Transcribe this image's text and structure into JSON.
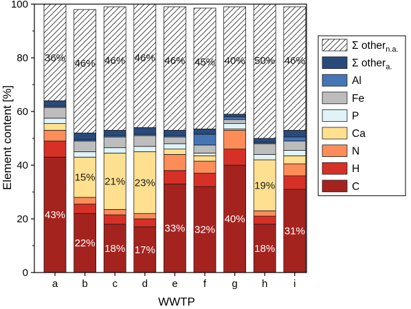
{
  "chart_data": {
    "type": "bar",
    "stacked": true,
    "xlabel": "WWTP",
    "ylabel": "Element content [%]",
    "ylim": [
      0,
      100
    ],
    "yticks": [
      0,
      20,
      40,
      60,
      80,
      100
    ],
    "categories": [
      "a",
      "b",
      "c",
      "d",
      "e",
      "f",
      "g",
      "h",
      "i"
    ],
    "legend_position": "right",
    "series": [
      {
        "key": "C",
        "name": "C",
        "color": "#a5231f",
        "values": [
          43,
          22,
          18,
          17,
          33,
          32,
          40,
          18,
          31
        ]
      },
      {
        "key": "H",
        "name": "H",
        "color": "#d73027",
        "values": [
          6,
          3.5,
          3.5,
          3,
          5,
          5,
          6,
          3,
          5
        ]
      },
      {
        "key": "N",
        "name": "N",
        "color": "#fc8d59",
        "values": [
          4,
          2.5,
          2,
          2,
          6,
          4.5,
          7,
          2,
          4.5
        ]
      },
      {
        "key": "Ca",
        "name": "Ca",
        "color": "#fee090",
        "values": [
          2.5,
          15,
          21,
          23,
          2,
          2,
          0.5,
          19,
          3
        ]
      },
      {
        "key": "P",
        "name": "P",
        "color": "#e0f3f8",
        "values": [
          2,
          2,
          2,
          2,
          2,
          1,
          2,
          2,
          2
        ]
      },
      {
        "key": "Fe",
        "name": "Fe",
        "color": "#bdbdbd",
        "values": [
          4,
          4,
          4,
          4,
          2.5,
          3,
          1.5,
          4,
          3.5
        ]
      },
      {
        "key": "Al",
        "name": "Al",
        "color": "#4575b4",
        "values": [
          0.5,
          0.5,
          0.5,
          0.5,
          0.5,
          4,
          1,
          0.5,
          1.5
        ]
      },
      {
        "key": "other_a",
        "name": "Σ other",
        "subscript": "a.",
        "color": "#294a7b",
        "values": [
          2,
          2.5,
          2,
          2.5,
          2,
          2,
          1,
          1.5,
          2.5
        ]
      },
      {
        "key": "other_na",
        "name": "Σ other",
        "subscript": "n.a.",
        "color": "#ffffff",
        "hatched": true,
        "values": [
          36,
          46,
          46,
          46,
          46,
          45,
          40,
          50,
          46
        ]
      }
    ],
    "data_labels": [
      {
        "category": "a",
        "series": "C",
        "text": "43%"
      },
      {
        "category": "b",
        "series": "C",
        "text": "22%"
      },
      {
        "category": "c",
        "series": "C",
        "text": "18%"
      },
      {
        "category": "d",
        "series": "C",
        "text": "17%"
      },
      {
        "category": "e",
        "series": "C",
        "text": "33%"
      },
      {
        "category": "f",
        "series": "C",
        "text": "32%"
      },
      {
        "category": "g",
        "series": "C",
        "text": "40%"
      },
      {
        "category": "h",
        "series": "C",
        "text": "18%"
      },
      {
        "category": "i",
        "series": "C",
        "text": "31%"
      },
      {
        "category": "b",
        "series": "Ca",
        "text": "15%"
      },
      {
        "category": "c",
        "series": "Ca",
        "text": "21%"
      },
      {
        "category": "d",
        "series": "Ca",
        "text": "23%"
      },
      {
        "category": "h",
        "series": "Ca",
        "text": "19%"
      },
      {
        "category": "a",
        "series": "other_na",
        "text": "36%"
      },
      {
        "category": "b",
        "series": "other_na",
        "text": "46%"
      },
      {
        "category": "c",
        "series": "other_na",
        "text": "46%"
      },
      {
        "category": "d",
        "series": "other_na",
        "text": "46%"
      },
      {
        "category": "e",
        "series": "other_na",
        "text": "46%"
      },
      {
        "category": "f",
        "series": "other_na",
        "text": "45%"
      },
      {
        "category": "g",
        "series": "other_na",
        "text": "40%"
      },
      {
        "category": "h",
        "series": "other_na",
        "text": "50%"
      },
      {
        "category": "i",
        "series": "other_na",
        "text": "46%"
      }
    ],
    "legend_order": [
      "other_na",
      "other_a",
      "Al",
      "Fe",
      "P",
      "Ca",
      "N",
      "H",
      "C"
    ]
  }
}
